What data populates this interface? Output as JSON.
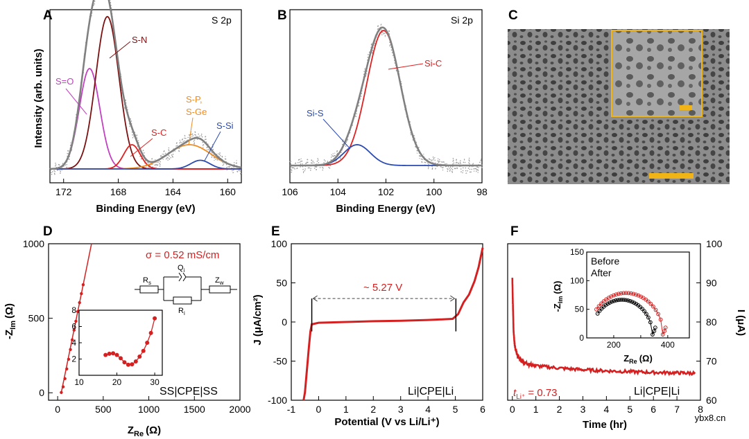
{
  "panel_labels": [
    "A",
    "B",
    "C",
    "D",
    "E",
    "F"
  ],
  "watermark": "ybx8.cn",
  "chart_data": [
    {
      "panel": "A",
      "type": "line",
      "corner_label": "S 2p",
      "xlabel": "Binding Energy (eV)",
      "ylabel": "Intensity (arb. units)",
      "xlim": [
        173,
        159
      ],
      "xticks": [
        172,
        168,
        164,
        160
      ],
      "ylim": [
        0,
        1
      ],
      "series": [
        {
          "name": "S=O",
          "color": "#c040c0",
          "peaks": [
            [
              170.1,
              0.58,
              0.75
            ]
          ]
        },
        {
          "name": "S-N",
          "color": "#7a1010",
          "peaks": [
            [
              168.8,
              0.88,
              0.85
            ]
          ]
        },
        {
          "name": "S-C",
          "color": "#e02020",
          "peaks": [
            [
              167.0,
              0.14,
              0.6
            ]
          ]
        },
        {
          "name": "S-P, S-Ge",
          "color": "#f08c20",
          "peaks": [
            [
              162.8,
              0.14,
              1.6
            ]
          ]
        },
        {
          "name": "S-Si",
          "color": "#2a4ab0",
          "peaks": [
            [
              162.0,
              0.05,
              0.7
            ]
          ]
        },
        {
          "name": "envelope",
          "color": "#808080"
        }
      ],
      "annotations": [
        "S-N",
        "S=O",
        "S-P,",
        "S-Ge",
        "S-C",
        "S-Si"
      ]
    },
    {
      "panel": "B",
      "type": "line",
      "corner_label": "Si 2p",
      "xlabel": "Binding Energy (eV)",
      "xlim": [
        106,
        98
      ],
      "xticks": [
        106,
        104,
        102,
        100,
        98
      ],
      "ylim": [
        0,
        1
      ],
      "series": [
        {
          "name": "Si-C",
          "color": "#e02020",
          "peaks": [
            [
              102.1,
              0.78,
              0.7
            ]
          ]
        },
        {
          "name": "Si-S",
          "color": "#2a4ab0",
          "peaks": [
            [
              103.2,
              0.12,
              0.55
            ]
          ]
        },
        {
          "name": "envelope",
          "color": "#808080"
        }
      ],
      "annotations": [
        "Si-C",
        "Si-S"
      ]
    },
    {
      "panel": "D",
      "type": "scatter",
      "xlabel_main": "Z",
      "xlabel_sub": "Re",
      "xlabel_unit": "(Ω)",
      "ylabel_main": "-Z",
      "ylabel_sub": "Im",
      "ylabel_unit": "(Ω)",
      "xlim": [
        -100,
        2000
      ],
      "ylim": [
        -50,
        1000
      ],
      "xticks": [
        0,
        500,
        1000,
        1500,
        2000
      ],
      "yticks": [
        0,
        500,
        1000
      ],
      "x": [
        40,
        60,
        80,
        100,
        120,
        140,
        160,
        180,
        200,
        220,
        240,
        260,
        280
      ],
      "y": [
        2,
        40,
        95,
        160,
        225,
        290,
        355,
        420,
        480,
        545,
        605,
        665,
        725
      ],
      "color": "#d42020",
      "conductivity": "σ = 0.52 mS/cm",
      "circuit_labels": {
        "rs": "R",
        "rs_sub": "s",
        "qi": "Q",
        "qi_sub": "i",
        "ri": "R",
        "ri_sub": "i",
        "zw": "Z",
        "zw_sub": "w"
      },
      "inset": {
        "xlim": [
          10,
          32
        ],
        "ylim": [
          0,
          8
        ],
        "xticks": [
          10,
          20,
          30
        ],
        "yticks": [
          2,
          4,
          6,
          8
        ],
        "x": [
          17,
          18,
          19,
          20,
          21,
          22,
          23,
          24,
          25,
          26,
          27,
          28,
          29,
          30
        ],
        "y": [
          2.5,
          2.65,
          2.7,
          2.5,
          2.1,
          1.6,
          1.3,
          1.35,
          1.7,
          2.3,
          3.0,
          4.0,
          5.2,
          7.0
        ]
      },
      "sample_label": "SS|CPE|SS"
    },
    {
      "panel": "E",
      "type": "line",
      "xlabel": "Potential (V vs Li/Li⁺)",
      "ylabel": "J (μA/cm²)",
      "xlim": [
        -1,
        6
      ],
      "ylim": [
        -100,
        100
      ],
      "xticks": [
        -1,
        0,
        1,
        2,
        3,
        4,
        5,
        6
      ],
      "yticks": [
        -100,
        -50,
        0,
        50,
        100
      ],
      "x": [
        -0.55,
        -0.5,
        -0.45,
        -0.4,
        -0.35,
        -0.3,
        -0.25,
        0,
        1,
        2,
        3,
        4,
        4.9,
        5.1,
        5.3,
        5.5,
        5.7,
        5.85,
        6
      ],
      "y": [
        -100,
        -90,
        -70,
        -50,
        -30,
        -12,
        -3,
        -1,
        0,
        1,
        1.5,
        2.5,
        4,
        10,
        25,
        35,
        52,
        70,
        95
      ],
      "color": "#d42020",
      "window_label": "~ 5.27 V",
      "window": [
        -0.25,
        5.02
      ],
      "sample_label": "Li|CPE|Li"
    },
    {
      "panel": "F",
      "type": "line",
      "xlabel": "Time (hr)",
      "ylabel_right": "I (μA)",
      "xlim": [
        -0.2,
        8
      ],
      "ylim": [
        60,
        100
      ],
      "xticks": [
        0,
        1,
        2,
        3,
        4,
        5,
        6,
        7,
        8
      ],
      "yticks": [
        60,
        70,
        80,
        90,
        100
      ],
      "x": [
        0,
        0.02,
        0.05,
        0.1,
        0.2,
        0.4,
        0.7,
        1,
        2,
        3,
        4,
        5,
        6,
        7,
        7.8
      ],
      "y": [
        91,
        85,
        78,
        74,
        71.5,
        70,
        69.2,
        68.8,
        68.2,
        67.8,
        67.5,
        67.3,
        67.1,
        67,
        66.9
      ],
      "color": "#d42020",
      "transference": "t",
      "transference_sub": "Li⁺",
      "transference_value": " = 0.73",
      "sample_label": "Li|CPE|Li",
      "inset": {
        "xlabel_main": "Z",
        "xlabel_sub": "Re",
        "xlabel_unit": "(Ω)",
        "ylabel_main": "-Z",
        "ylabel_sub": "Im",
        "ylabel_unit": "(Ω)",
        "xlim": [
          100,
          480
        ],
        "ylim": [
          0,
          150
        ],
        "xticks": [
          200,
          300,
          400
        ],
        "xtick_labels": [
          "200",
          "400"
        ],
        "yticks": [
          0,
          50,
          100,
          150
        ],
        "legend": [
          "Before",
          "After"
        ],
        "before": {
          "color": "#000000",
          "center": 230,
          "radius": 115,
          "height": 66
        },
        "after": {
          "color": "#d42020",
          "center": 245,
          "radius": 140,
          "height": 78
        }
      }
    }
  ]
}
